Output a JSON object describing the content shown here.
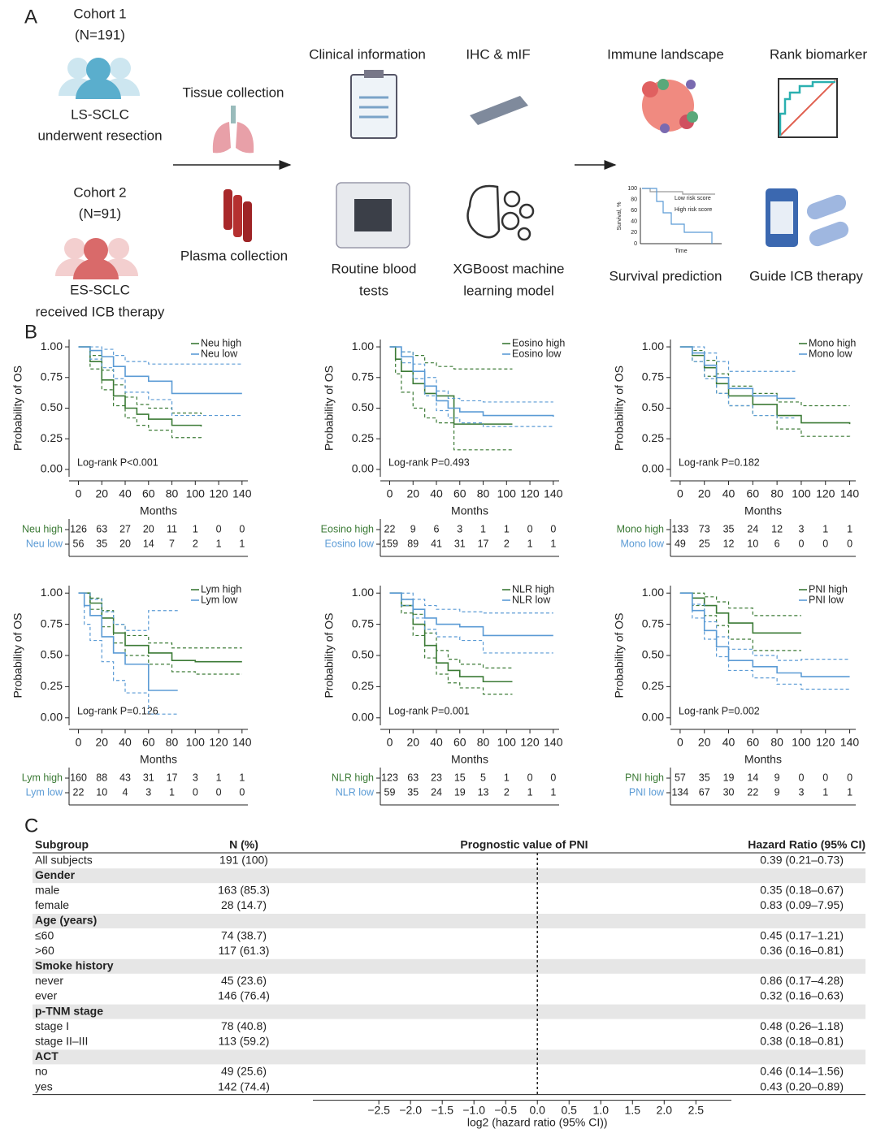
{
  "panel_a": {
    "label": "A",
    "cohort1": {
      "title": "Cohort 1",
      "n": "(N=191)",
      "group": "LS-SCLC",
      "desc": "underwent resection"
    },
    "cohort2": {
      "title": "Cohort 2",
      "n": "(N=91)",
      "group": "ES-SCLC",
      "desc": "received ICB therapy"
    },
    "steps": {
      "tissue": "Tissue collection",
      "plasma": "Plasma collection",
      "clinical": "Clinical information",
      "ihc": "IHC & mIF",
      "blood": [
        "Routine blood",
        "tests"
      ],
      "xgboost": [
        "XGBoost machine",
        "learning model"
      ],
      "immune": "Immune landscape",
      "rank": "Rank biomarker",
      "survival": "Survival prediction",
      "guide": "Guide ICB therapy"
    },
    "mini_km": {
      "ylabel": "Survival, %",
      "xlabel": "Time",
      "yticks": [
        0,
        20,
        40,
        60,
        80,
        100
      ],
      "low": "Low risk score",
      "high": "High risk score"
    }
  },
  "panel_b": {
    "label": "B"
  },
  "panel_c": {
    "label": "C"
  },
  "chart_data": [
    {
      "type": "km",
      "xlabel": "Months",
      "ylabel": "Probability of OS",
      "pvalue": "Log-rank P<0.001",
      "xlim": [
        -8,
        145
      ],
      "xticks": [
        0,
        20,
        40,
        60,
        80,
        100,
        120,
        140
      ],
      "ylim": [
        -0.06,
        1.06
      ],
      "yticks": [
        {
          "value": 0,
          "label": "0.00"
        },
        {
          "value": 0.25,
          "label": "0.25"
        },
        {
          "value": 0.5,
          "label": "0.50"
        },
        {
          "value": 0.75,
          "label": "0.75"
        },
        {
          "value": 1,
          "label": "1.00"
        }
      ],
      "series": [
        {
          "name": "Neu high",
          "color": "#3b7a35",
          "x": [
            0,
            10,
            20,
            30,
            40,
            50,
            60,
            80,
            105
          ],
          "values": [
            1,
            0.88,
            0.73,
            0.6,
            0.5,
            0.45,
            0.41,
            0.36,
            0.35
          ],
          "ci_lower": [
            1,
            0.82,
            0.65,
            0.52,
            0.42,
            0.36,
            0.32,
            0.26,
            0.25
          ],
          "ci_upper": [
            1,
            0.93,
            0.81,
            0.69,
            0.59,
            0.53,
            0.5,
            0.46,
            0.45
          ],
          "at_risk": [
            126,
            63,
            27,
            20,
            11,
            1,
            0,
            0
          ]
        },
        {
          "name": "Neu low",
          "color": "#5b9bd5",
          "x": [
            0,
            10,
            20,
            30,
            40,
            60,
            80,
            140
          ],
          "values": [
            1,
            0.97,
            0.92,
            0.84,
            0.76,
            0.72,
            0.62,
            0.62
          ],
          "ci_lower": [
            1,
            0.9,
            0.83,
            0.74,
            0.63,
            0.57,
            0.44,
            0.44
          ],
          "ci_upper": [
            1,
            1,
            0.98,
            0.93,
            0.88,
            0.86,
            0.86,
            0.86
          ],
          "at_risk": [
            56,
            35,
            20,
            14,
            7,
            2,
            1,
            1
          ]
        }
      ]
    },
    {
      "type": "km",
      "xlabel": "Months",
      "ylabel": "Probability of OS",
      "pvalue": "Log-rank P=0.493",
      "xlim": [
        -8,
        145
      ],
      "xticks": [
        0,
        20,
        40,
        60,
        80,
        100,
        120,
        140
      ],
      "ylim": [
        -0.06,
        1.06
      ],
      "yticks": [
        {
          "value": 0,
          "label": "0.00"
        },
        {
          "value": 0.25,
          "label": "0.25"
        },
        {
          "value": 0.5,
          "label": "0.50"
        },
        {
          "value": 0.75,
          "label": "0.75"
        },
        {
          "value": 1,
          "label": "1.00"
        }
      ],
      "series": [
        {
          "name": "Eosino high",
          "color": "#3b7a35",
          "x": [
            0,
            5,
            10,
            20,
            30,
            40,
            55,
            105
          ],
          "values": [
            1,
            0.9,
            0.8,
            0.7,
            0.62,
            0.6,
            0.37,
            0.37
          ],
          "ci_lower": [
            1,
            0.78,
            0.63,
            0.5,
            0.42,
            0.38,
            0.16,
            0.16
          ],
          "ci_upper": [
            1,
            1,
            0.96,
            0.93,
            0.87,
            0.84,
            0.82,
            0.82
          ],
          "at_risk": [
            22,
            9,
            6,
            3,
            1,
            1,
            0,
            0
          ]
        },
        {
          "name": "Eosino low",
          "color": "#5b9bd5",
          "x": [
            0,
            10,
            20,
            30,
            40,
            50,
            60,
            80,
            140
          ],
          "values": [
            1,
            0.92,
            0.8,
            0.68,
            0.56,
            0.5,
            0.47,
            0.44,
            0.43
          ],
          "ci_lower": [
            1,
            0.87,
            0.74,
            0.6,
            0.48,
            0.42,
            0.38,
            0.35,
            0.34
          ],
          "ci_upper": [
            1,
            0.96,
            0.86,
            0.75,
            0.64,
            0.58,
            0.56,
            0.55,
            0.55
          ],
          "at_risk": [
            159,
            89,
            41,
            31,
            17,
            2,
            1,
            1
          ]
        }
      ]
    },
    {
      "type": "km",
      "xlabel": "Months",
      "ylabel": "Probability of OS",
      "pvalue": "Log-rank P=0.182",
      "xlim": [
        -8,
        145
      ],
      "xticks": [
        0,
        20,
        40,
        60,
        80,
        100,
        120,
        140
      ],
      "ylim": [
        -0.06,
        1.06
      ],
      "yticks": [
        {
          "value": 0,
          "label": "0.00"
        },
        {
          "value": 0.25,
          "label": "0.25"
        },
        {
          "value": 0.5,
          "label": "0.50"
        },
        {
          "value": 0.75,
          "label": "0.75"
        },
        {
          "value": 1,
          "label": "1.00"
        }
      ],
      "series": [
        {
          "name": "Mono high",
          "color": "#3b7a35",
          "x": [
            0,
            10,
            20,
            30,
            40,
            60,
            80,
            100,
            140
          ],
          "values": [
            1,
            0.93,
            0.83,
            0.7,
            0.6,
            0.53,
            0.44,
            0.38,
            0.37
          ],
          "ci_lower": [
            1,
            0.88,
            0.76,
            0.62,
            0.52,
            0.44,
            0.33,
            0.27,
            0.26
          ],
          "ci_upper": [
            1,
            0.97,
            0.89,
            0.78,
            0.68,
            0.62,
            0.55,
            0.52,
            0.52
          ],
          "at_risk": [
            133,
            73,
            35,
            24,
            12,
            3,
            1,
            1
          ]
        },
        {
          "name": "Mono low",
          "color": "#5b9bd5",
          "x": [
            0,
            10,
            20,
            30,
            40,
            60,
            80,
            95
          ],
          "values": [
            1,
            0.95,
            0.85,
            0.75,
            0.66,
            0.6,
            0.58,
            0.58
          ],
          "ci_lower": [
            1,
            0.88,
            0.74,
            0.62,
            0.52,
            0.44,
            0.42,
            0.42
          ],
          "ci_upper": [
            1,
            1,
            0.95,
            0.88,
            0.8,
            0.8,
            0.8,
            0.8
          ],
          "at_risk": [
            49,
            25,
            12,
            10,
            6,
            0,
            0,
            0
          ]
        }
      ]
    },
    {
      "type": "km",
      "xlabel": "Months",
      "ylabel": "Probability of OS",
      "pvalue": "Log-rank P=0.126",
      "xlim": [
        -8,
        145
      ],
      "xticks": [
        0,
        20,
        40,
        60,
        80,
        100,
        120,
        140
      ],
      "ylim": [
        -0.06,
        1.06
      ],
      "yticks": [
        {
          "value": 0,
          "label": "0.00"
        },
        {
          "value": 0.25,
          "label": "0.25"
        },
        {
          "value": 0.5,
          "label": "0.50"
        },
        {
          "value": 0.75,
          "label": "0.75"
        },
        {
          "value": 1,
          "label": "1.00"
        }
      ],
      "series": [
        {
          "name": "Lym high",
          "color": "#3b7a35",
          "x": [
            0,
            10,
            20,
            30,
            40,
            60,
            80,
            100,
            140
          ],
          "values": [
            1,
            0.92,
            0.8,
            0.68,
            0.58,
            0.52,
            0.46,
            0.45,
            0.45
          ],
          "ci_lower": [
            1,
            0.87,
            0.73,
            0.6,
            0.5,
            0.43,
            0.37,
            0.35,
            0.35
          ],
          "ci_upper": [
            1,
            0.96,
            0.86,
            0.75,
            0.66,
            0.6,
            0.56,
            0.56,
            0.56
          ],
          "at_risk": [
            160,
            88,
            43,
            31,
            17,
            3,
            1,
            1
          ]
        },
        {
          "name": "Lym low",
          "color": "#5b9bd5",
          "x": [
            0,
            5,
            10,
            20,
            30,
            40,
            60,
            85
          ],
          "values": [
            1,
            0.9,
            0.82,
            0.65,
            0.52,
            0.43,
            0.22,
            0.22
          ],
          "ci_lower": [
            1,
            0.75,
            0.62,
            0.45,
            0.3,
            0.2,
            0.03,
            0.03
          ],
          "ci_upper": [
            1,
            1,
            0.95,
            0.85,
            0.75,
            0.7,
            0.86,
            0.86
          ],
          "at_risk": [
            22,
            10,
            4,
            3,
            1,
            0,
            0,
            0
          ]
        }
      ]
    },
    {
      "type": "km",
      "xlabel": "Months",
      "ylabel": "Probability of OS",
      "pvalue": "Log-rank P=0.001",
      "xlim": [
        -8,
        145
      ],
      "xticks": [
        0,
        20,
        40,
        60,
        80,
        100,
        120,
        140
      ],
      "ylim": [
        -0.06,
        1.06
      ],
      "yticks": [
        {
          "value": 0,
          "label": "0.00"
        },
        {
          "value": 0.25,
          "label": "0.25"
        },
        {
          "value": 0.5,
          "label": "0.50"
        },
        {
          "value": 0.75,
          "label": "0.75"
        },
        {
          "value": 1,
          "label": "1.00"
        }
      ],
      "series": [
        {
          "name": "NLR high",
          "color": "#3b7a35",
          "x": [
            0,
            10,
            20,
            30,
            40,
            50,
            60,
            80,
            105
          ],
          "values": [
            1,
            0.9,
            0.75,
            0.58,
            0.44,
            0.38,
            0.33,
            0.29,
            0.29
          ],
          "ci_lower": [
            1,
            0.84,
            0.66,
            0.48,
            0.35,
            0.28,
            0.24,
            0.19,
            0.19
          ],
          "ci_upper": [
            1,
            0.95,
            0.83,
            0.68,
            0.54,
            0.47,
            0.43,
            0.4,
            0.4
          ],
          "at_risk": [
            123,
            63,
            23,
            15,
            5,
            1,
            0,
            0
          ]
        },
        {
          "name": "NLR low",
          "color": "#5b9bd5",
          "x": [
            0,
            10,
            20,
            30,
            40,
            60,
            80,
            140
          ],
          "values": [
            1,
            0.95,
            0.87,
            0.8,
            0.75,
            0.73,
            0.66,
            0.66
          ],
          "ci_lower": [
            1,
            0.9,
            0.8,
            0.71,
            0.65,
            0.62,
            0.52,
            0.52
          ],
          "ci_upper": [
            1,
            1,
            0.95,
            0.9,
            0.87,
            0.85,
            0.84,
            0.84
          ],
          "at_risk": [
            59,
            35,
            24,
            19,
            13,
            2,
            1,
            1
          ]
        }
      ]
    },
    {
      "type": "km",
      "xlabel": "Months",
      "ylabel": "Probability of OS",
      "pvalue": "Log-rank P=0.002",
      "xlim": [
        -8,
        145
      ],
      "xticks": [
        0,
        20,
        40,
        60,
        80,
        100,
        120,
        140
      ],
      "ylim": [
        -0.06,
        1.06
      ],
      "yticks": [
        {
          "value": 0,
          "label": "0.00"
        },
        {
          "value": 0.25,
          "label": "0.25"
        },
        {
          "value": 0.5,
          "label": "0.50"
        },
        {
          "value": 0.75,
          "label": "0.75"
        },
        {
          "value": 1,
          "label": "1.00"
        }
      ],
      "series": [
        {
          "name": "PNI high",
          "color": "#3b7a35",
          "x": [
            0,
            10,
            20,
            30,
            40,
            60,
            80,
            100
          ],
          "values": [
            1,
            0.96,
            0.9,
            0.84,
            0.76,
            0.68,
            0.68,
            0.68
          ],
          "ci_lower": [
            1,
            0.9,
            0.82,
            0.74,
            0.63,
            0.54,
            0.54,
            0.54
          ],
          "ci_upper": [
            1,
            1,
            0.97,
            0.93,
            0.88,
            0.82,
            0.82,
            0.82
          ],
          "at_risk": [
            57,
            35,
            19,
            14,
            9,
            0,
            0,
            0
          ]
        },
        {
          "name": "PNI low",
          "color": "#5b9bd5",
          "x": [
            0,
            10,
            20,
            30,
            40,
            60,
            80,
            100,
            140
          ],
          "values": [
            1,
            0.86,
            0.7,
            0.57,
            0.46,
            0.41,
            0.36,
            0.33,
            0.33
          ],
          "ci_lower": [
            1,
            0.8,
            0.63,
            0.49,
            0.38,
            0.32,
            0.27,
            0.23,
            0.23
          ],
          "ci_upper": [
            1,
            0.91,
            0.77,
            0.65,
            0.55,
            0.5,
            0.46,
            0.47,
            0.47
          ],
          "at_risk": [
            134,
            67,
            30,
            22,
            9,
            3,
            1,
            1
          ]
        }
      ]
    },
    {
      "type": "forest",
      "xlabel": "log2 (hazard ratio (95% CI))",
      "reference": 0,
      "header": {
        "subgroup": "Subgroup",
        "n": "N (%)",
        "plot": "Prognostic value of PNI",
        "hr": "Hazard Ratio (95% CI)"
      },
      "xlim": [
        -3.54,
        3.06
      ],
      "xticks": [
        {
          "value": -2.5,
          "label": "−2.5"
        },
        {
          "value": -2,
          "label": "−2.0"
        },
        {
          "value": -1.5,
          "label": "−1.5"
        },
        {
          "value": -1,
          "label": "−1.0"
        },
        {
          "value": -0.5,
          "label": "−0.5"
        },
        {
          "value": 0,
          "label": "0.0"
        },
        0.5,
        {
          "value": 1,
          "label": "1.0"
        },
        1.5,
        {
          "value": 2,
          "label": "2.0"
        },
        2.5
      ],
      "rows": [
        {
          "label": "All subjects",
          "n": "191 (100)",
          "hr": "0.39 (0.21–0.73)"
        },
        {
          "label": "Gender",
          "group": true
        },
        {
          "label": "male",
          "n": "163 (85.3)",
          "hr": "0.35 (0.18–0.67)"
        },
        {
          "label": "female",
          "n": "28 (14.7)",
          "hr": "0.83 (0.09–7.95)"
        },
        {
          "label": "Age (years)",
          "group": true
        },
        {
          "label": "≤60",
          "n": "74 (38.7)",
          "hr": "0.45 (0.17–1.21)"
        },
        {
          "label": ">60",
          "n": "117 (61.3)",
          "hr": "0.36 (0.16–0.81)"
        },
        {
          "label": "Smoke history",
          "group": true
        },
        {
          "label": "never",
          "n": "45 (23.6)",
          "hr": "0.86 (0.17–4.28)"
        },
        {
          "label": "ever",
          "n": "146 (76.4)",
          "hr": "0.32 (0.16–0.63)"
        },
        {
          "label": "p-TNM stage",
          "group": true
        },
        {
          "label": "stage I",
          "n": "78 (40.8)",
          "hr": "0.48 (0.26–1.18)"
        },
        {
          "label": "stage II–III",
          "n": "113 (59.2)",
          "hr": "0.38 (0.18–0.81)"
        },
        {
          "label": "ACT",
          "group": true
        },
        {
          "label": "no",
          "n": "49 (25.6)",
          "hr": "0.46 (0.14–1.56)"
        },
        {
          "label": "yes",
          "n": "142 (74.4)",
          "hr": "0.43 (0.20–0.89)"
        }
      ]
    }
  ]
}
